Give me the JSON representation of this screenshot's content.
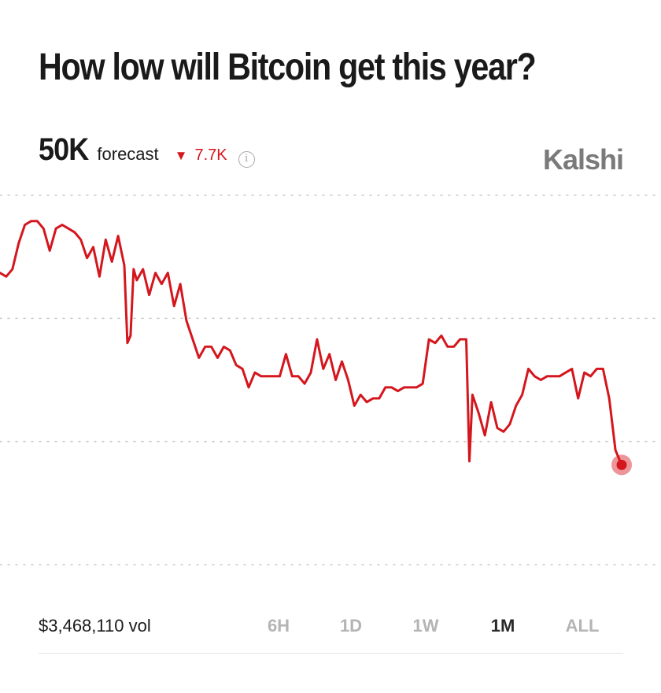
{
  "title": "How low will Bitcoin get this year?",
  "forecast": {
    "value": "50K",
    "label": "forecast",
    "change": "7.7K",
    "change_direction": "down"
  },
  "brand": "Kalshi",
  "volume": "$3,468,110 vol",
  "time_ranges": [
    {
      "label": "6H",
      "active": false
    },
    {
      "label": "1D",
      "active": false
    },
    {
      "label": "1W",
      "active": false
    },
    {
      "label": "1M",
      "active": true
    },
    {
      "label": "ALL",
      "active": false
    }
  ],
  "colors": {
    "line": "#d4161d",
    "text": "#1a1a1a",
    "muted": "#b4b4b4",
    "brand": "#7a7a7a",
    "grid": "#cccccc"
  },
  "chart_data": {
    "type": "line",
    "grid": true,
    "gridlines": 4,
    "ylim": [
      0,
      100
    ],
    "x_range": [
      0,
      100
    ],
    "series": [
      {
        "values": [
          [
            0,
            79
          ],
          [
            1,
            78
          ],
          [
            2,
            80
          ],
          [
            3,
            87
          ],
          [
            4,
            92
          ],
          [
            5,
            93
          ],
          [
            6,
            93
          ],
          [
            7,
            91
          ],
          [
            8,
            85
          ],
          [
            9,
            91
          ],
          [
            10,
            92
          ],
          [
            11,
            91
          ],
          [
            12,
            90
          ],
          [
            13,
            88
          ],
          [
            14,
            83
          ],
          [
            15,
            86
          ],
          [
            16,
            78
          ],
          [
            17,
            88
          ],
          [
            18,
            82
          ],
          [
            19,
            89
          ],
          [
            20,
            81
          ],
          [
            20.5,
            60
          ],
          [
            21,
            62
          ],
          [
            21.5,
            80
          ],
          [
            22,
            77
          ],
          [
            23,
            80
          ],
          [
            24,
            73
          ],
          [
            25,
            79
          ],
          [
            26,
            76
          ],
          [
            27,
            79
          ],
          [
            28,
            70
          ],
          [
            29,
            76
          ],
          [
            30,
            66
          ],
          [
            31,
            61
          ],
          [
            32,
            56
          ],
          [
            33,
            59
          ],
          [
            34,
            59
          ],
          [
            35,
            56
          ],
          [
            36,
            59
          ],
          [
            37,
            58
          ],
          [
            38,
            54
          ],
          [
            39,
            53
          ],
          [
            40,
            48
          ],
          [
            41,
            52
          ],
          [
            42,
            51
          ],
          [
            43,
            51
          ],
          [
            44,
            51
          ],
          [
            45,
            51
          ],
          [
            46,
            57
          ],
          [
            47,
            51
          ],
          [
            48,
            51
          ],
          [
            49,
            49
          ],
          [
            50,
            52
          ],
          [
            51,
            61
          ],
          [
            52,
            53
          ],
          [
            53,
            57
          ],
          [
            54,
            50
          ],
          [
            55,
            55
          ],
          [
            56,
            50
          ],
          [
            57,
            43
          ],
          [
            58,
            46
          ],
          [
            59,
            44
          ],
          [
            60,
            45
          ],
          [
            61,
            45
          ],
          [
            62,
            48
          ],
          [
            63,
            48
          ],
          [
            64,
            47
          ],
          [
            65,
            48
          ],
          [
            66,
            48
          ],
          [
            67,
            48
          ],
          [
            68,
            49
          ],
          [
            69,
            61
          ],
          [
            70,
            60
          ],
          [
            71,
            62
          ],
          [
            72,
            59
          ],
          [
            73,
            59
          ],
          [
            74,
            61
          ],
          [
            75,
            61
          ],
          [
            75.5,
            28
          ],
          [
            76,
            46
          ],
          [
            77,
            41
          ],
          [
            78,
            35
          ],
          [
            79,
            44
          ],
          [
            80,
            37
          ],
          [
            81,
            36
          ],
          [
            82,
            38
          ],
          [
            83,
            43
          ],
          [
            84,
            46
          ],
          [
            85,
            53
          ],
          [
            86,
            51
          ],
          [
            87,
            50
          ],
          [
            88,
            51
          ],
          [
            89,
            51
          ],
          [
            90,
            51
          ],
          [
            91,
            52
          ],
          [
            92,
            53
          ],
          [
            93,
            45
          ],
          [
            94,
            52
          ],
          [
            95,
            51
          ],
          [
            96,
            53
          ],
          [
            97,
            53
          ],
          [
            98,
            45
          ],
          [
            99,
            31
          ],
          [
            100,
            27
          ]
        ]
      }
    ]
  }
}
